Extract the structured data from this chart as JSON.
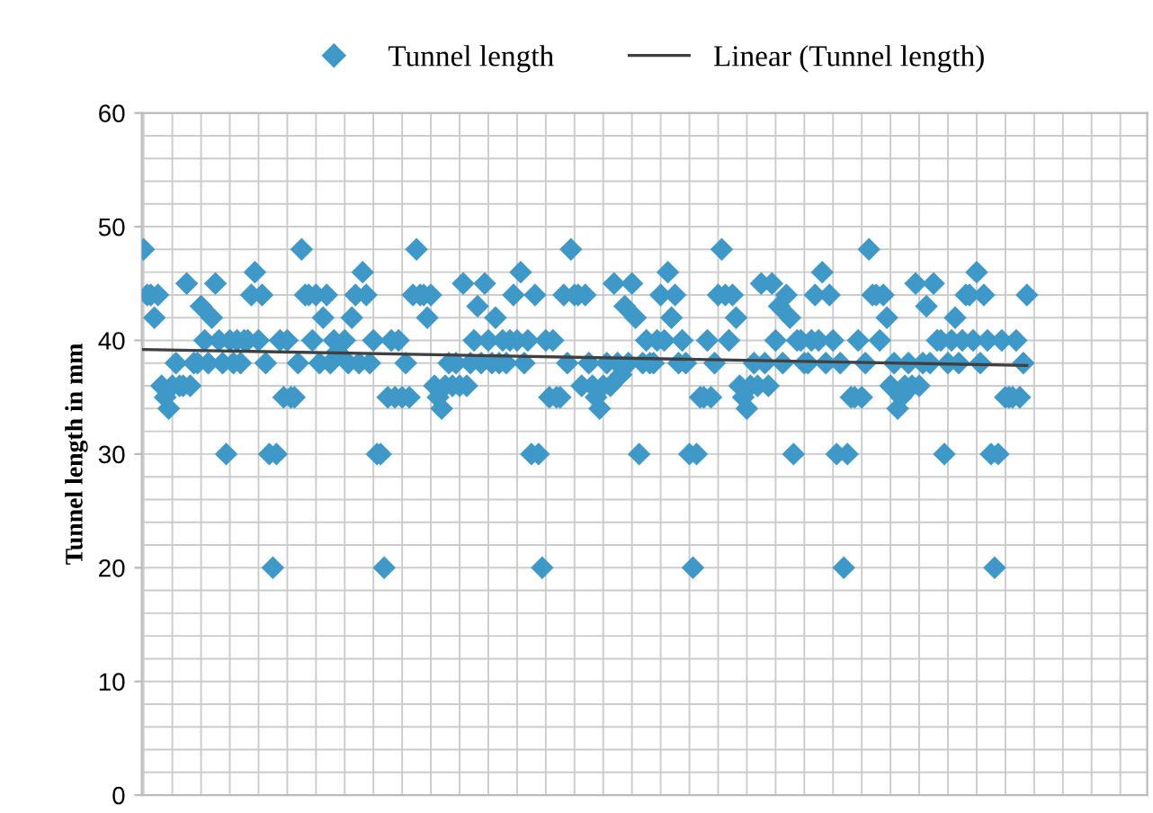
{
  "chart_data": {
    "type": "scatter",
    "ylabel": "Tunnel length in mm",
    "legend": "top",
    "grid": true,
    "categories": [
      null,
      null,
      null,
      null,
      null,
      null,
      null,
      null,
      null,
      null,
      null,
      null,
      null,
      null,
      null,
      null,
      null,
      null,
      null,
      null,
      null,
      null,
      null,
      null,
      null,
      null,
      null,
      null,
      null,
      null,
      null,
      null,
      null,
      null,
      null,
      null,
      null,
      null,
      null,
      null,
      null,
      null,
      null,
      null,
      null,
      null,
      null,
      null,
      null,
      null,
      null,
      null,
      null,
      null,
      null,
      null,
      null,
      null,
      null,
      null,
      null,
      null,
      null,
      null,
      null,
      null,
      null,
      null,
      null,
      null,
      null,
      null,
      null,
      null,
      null,
      null,
      null,
      null,
      null,
      null,
      null,
      null,
      null,
      null,
      null,
      null,
      null,
      null,
      null,
      null,
      null,
      null,
      null,
      null,
      null,
      null,
      null,
      null,
      null,
      null,
      null,
      null,
      null,
      null,
      null,
      null,
      null,
      null,
      null,
      null,
      null,
      null,
      null,
      null,
      null,
      null,
      null,
      null,
      null,
      null,
      null,
      null,
      null,
      null,
      null,
      null,
      null,
      null,
      null,
      null,
      null,
      null,
      null,
      null,
      null,
      null,
      null,
      null,
      null,
      null,
      null,
      null,
      null,
      null,
      null,
      null,
      null,
      null,
      null,
      null,
      null,
      null,
      null,
      null,
      null,
      null,
      null,
      null,
      null,
      null,
      null,
      null,
      null,
      null,
      null,
      null,
      null,
      null,
      null,
      null,
      null,
      null,
      null,
      null,
      null,
      null,
      null,
      null,
      null,
      null,
      null,
      null,
      null,
      null,
      null,
      null,
      null,
      null,
      null,
      null,
      null,
      null,
      null,
      null,
      null,
      null,
      null,
      null,
      null,
      null,
      null,
      null,
      null,
      null,
      null,
      null,
      null,
      null,
      null,
      null,
      null,
      null,
      null,
      null,
      null,
      null,
      null,
      null,
      null,
      null,
      null,
      null,
      null,
      null,
      null,
      null,
      null,
      null,
      null,
      null,
      null,
      null,
      null,
      null,
      null,
      null,
      null,
      null,
      null,
      null,
      null,
      null,
      null,
      null,
      null,
      null,
      null,
      null,
      null,
      null,
      null,
      null,
      null,
      null,
      null,
      null,
      null,
      null,
      null,
      null,
      null,
      null,
      null,
      null,
      null,
      null,
      null,
      null,
      null,
      null,
      null,
      null,
      null,
      null,
      null,
      null,
      null,
      null,
      null,
      null
    ],
    "ylim": [
      0,
      60
    ],
    "yticks": [
      0,
      10,
      20,
      30,
      40,
      50,
      60
    ],
    "series": [
      {
        "name": "Tunnel length",
        "marker": "diamond",
        "color": "#3e98c8",
        "values": [
          48,
          44,
          44,
          42,
          44,
          36,
          35,
          34,
          36,
          38,
          36,
          36,
          45,
          36,
          38,
          38,
          43,
          40,
          38,
          42,
          45,
          40,
          38,
          30,
          40,
          38,
          40,
          38,
          40,
          40,
          44,
          46,
          40,
          44,
          38,
          30,
          20,
          30,
          40,
          35,
          40,
          35,
          35,
          38,
          48,
          44,
          44,
          40,
          44,
          38,
          42,
          44,
          38,
          40,
          39,
          null,
          40,
          38,
          42,
          44,
          38,
          46,
          44,
          38,
          40,
          30,
          30,
          20,
          35,
          40,
          35,
          40,
          35,
          38,
          35,
          44,
          48,
          44,
          44,
          42,
          44,
          36,
          35,
          34,
          36,
          38,
          36,
          38,
          36,
          45,
          36,
          38,
          40,
          43,
          38,
          45,
          40,
          38,
          42,
          38,
          40,
          38,
          40,
          44,
          40,
          46,
          38,
          40,
          30,
          44,
          30,
          20,
          40,
          35,
          40,
          35,
          35,
          44,
          38,
          48,
          44,
          44,
          36,
          44,
          38,
          36,
          35,
          34,
          36,
          38,
          36,
          45,
          38,
          37,
          43,
          38,
          45,
          42,
          30,
          38,
          40,
          38,
          38,
          40,
          44,
          40,
          46,
          42,
          44,
          38,
          40,
          38,
          30,
          20,
          30,
          35,
          35,
          40,
          35,
          38,
          44,
          48,
          44,
          40,
          44,
          42,
          36,
          35,
          34,
          36,
          38,
          36,
          45,
          38,
          36,
          45,
          40,
          43,
          38,
          44,
          42,
          30,
          40,
          40,
          38,
          38,
          40,
          44,
          40,
          46,
          38,
          44,
          40,
          30,
          38,
          20,
          30,
          35,
          35,
          40,
          35,
          38,
          48,
          44,
          44,
          40,
          44,
          42,
          36,
          38,
          34,
          35,
          36,
          38,
          36,
          45,
          36,
          38,
          43,
          38,
          45,
          40,
          40,
          30,
          38,
          40,
          42,
          38,
          40,
          44,
          44,
          40,
          46,
          38,
          44,
          40,
          30,
          20,
          30,
          40,
          35,
          35,
          35,
          40,
          35,
          38,
          44,
          null,
          null,
          null,
          null,
          null,
          null,
          null,
          null,
          null,
          null,
          null,
          null,
          null,
          null,
          null,
          null,
          null,
          null,
          null,
          null,
          null,
          null,
          null,
          null,
          null,
          null,
          null,
          null,
          null,
          null,
          null,
          null,
          null
        ]
      },
      {
        "name": "Linear (Tunnel length)",
        "type": "line",
        "color": "#404040",
        "line_style": "solid",
        "marker": "none",
        "values": [
          39.2,
          null,
          null,
          null,
          null,
          null,
          null,
          null,
          null,
          null,
          null,
          null,
          null,
          null,
          null,
          null,
          null,
          null,
          null,
          null,
          null,
          null,
          null,
          null,
          null,
          null,
          null,
          null,
          null,
          null,
          null,
          null,
          null,
          null,
          null,
          null,
          null,
          null,
          null,
          null,
          null,
          null,
          null,
          null,
          null,
          null,
          null,
          null,
          null,
          null,
          null,
          null,
          null,
          null,
          null,
          null,
          null,
          null,
          null,
          null,
          null,
          null,
          null,
          null,
          null,
          null,
          null,
          null,
          null,
          null,
          null,
          null,
          null,
          null,
          null,
          null,
          null,
          null,
          null,
          null,
          null,
          null,
          null,
          null,
          null,
          null,
          null,
          null,
          null,
          null,
          null,
          null,
          null,
          null,
          null,
          null,
          null,
          null,
          null,
          null,
          null,
          null,
          null,
          null,
          null,
          null,
          null,
          null,
          null,
          null,
          null,
          null,
          null,
          null,
          null,
          null,
          null,
          null,
          null,
          null,
          null,
          null,
          null,
          null,
          null,
          null,
          null,
          null,
          null,
          null,
          null,
          null,
          null,
          null,
          null,
          null,
          null,
          null,
          null,
          null,
          null,
          null,
          null,
          null,
          null,
          null,
          null,
          null,
          null,
          null,
          null,
          null,
          null,
          null,
          null,
          null,
          null,
          null,
          null,
          null,
          null,
          null,
          null,
          null,
          null,
          null,
          null,
          null,
          null,
          null,
          null,
          null,
          null,
          null,
          null,
          null,
          null,
          null,
          null,
          null,
          null,
          null,
          null,
          null,
          null,
          null,
          null,
          null,
          null,
          null,
          null,
          null,
          null,
          null,
          null,
          null,
          null,
          null,
          null,
          null,
          null,
          null,
          null,
          null,
          null,
          null,
          null,
          null,
          null,
          null,
          null,
          null,
          null,
          null,
          null,
          null,
          null,
          null,
          null,
          null,
          null,
          null,
          null,
          null,
          null,
          null,
          null,
          null,
          null,
          null,
          null,
          null,
          null,
          null,
          null,
          null,
          null,
          null,
          null,
          null,
          null,
          null,
          null,
          null,
          null,
          null,
          37.8,
          null,
          null,
          null,
          null,
          null,
          null,
          null,
          null,
          null,
          null,
          null,
          null,
          null,
          null,
          null,
          null,
          null,
          null,
          null,
          null,
          null,
          null,
          null,
          null,
          null,
          null,
          null,
          null,
          null,
          null,
          null,
          null,
          null
        ]
      }
    ]
  }
}
